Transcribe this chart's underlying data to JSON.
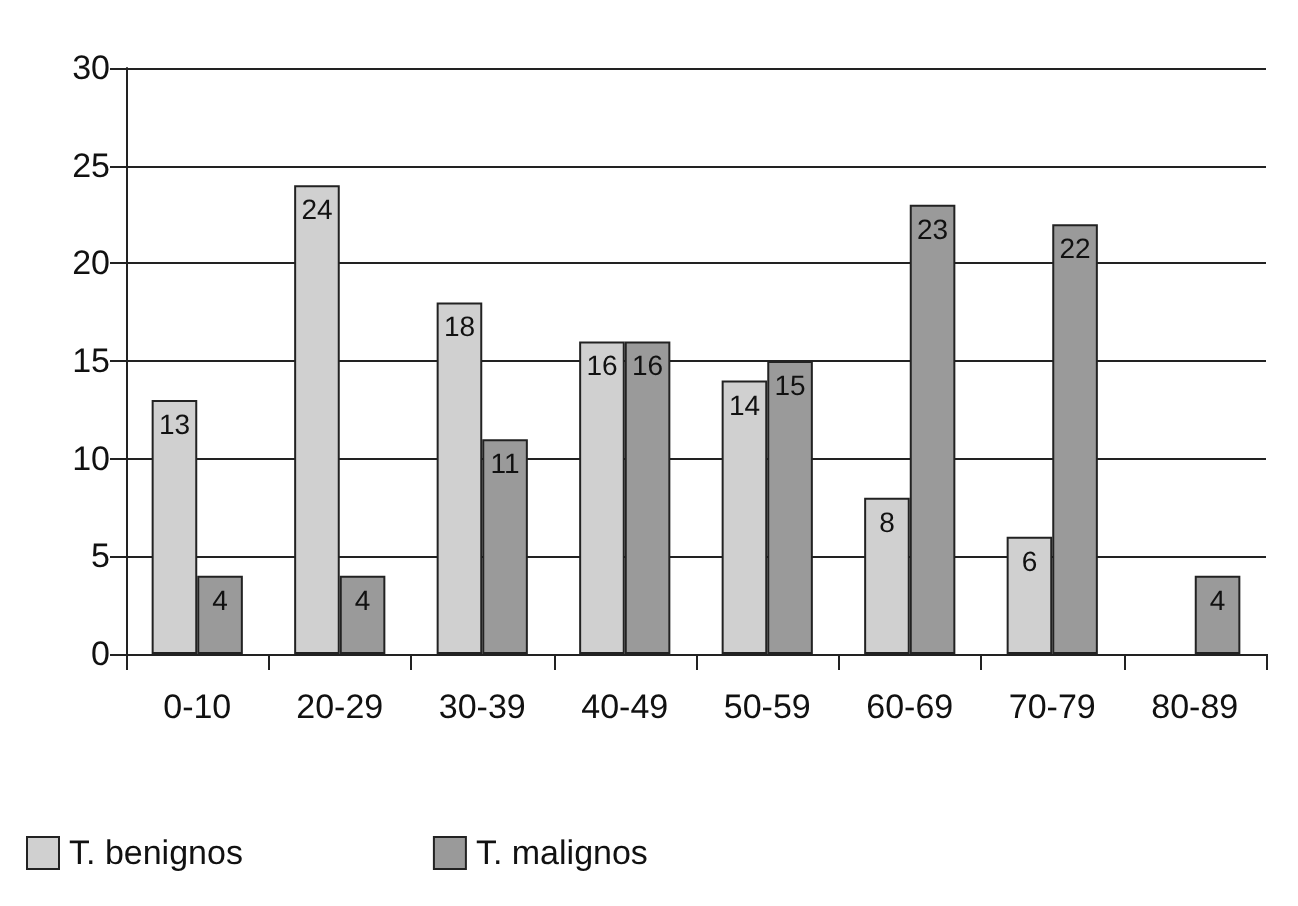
{
  "chart_data": {
    "type": "bar",
    "categories": [
      "0-10",
      "20-29",
      "30-39",
      "40-49",
      "50-59",
      "60-69",
      "70-79",
      "80-89"
    ],
    "series": [
      {
        "name": "T. benignos",
        "color": "#d0d0d0",
        "values": [
          13,
          24,
          18,
          16,
          14,
          8,
          6,
          null
        ]
      },
      {
        "name": "T. malignos",
        "color": "#9a9a9a",
        "values": [
          4,
          4,
          11,
          16,
          15,
          23,
          22,
          4
        ]
      }
    ],
    "ylim": [
      0,
      30
    ],
    "yticks": [
      0,
      5,
      10,
      15,
      20,
      25,
      30
    ],
    "grid": "y",
    "legend": "bottom left",
    "data_labels": true
  }
}
